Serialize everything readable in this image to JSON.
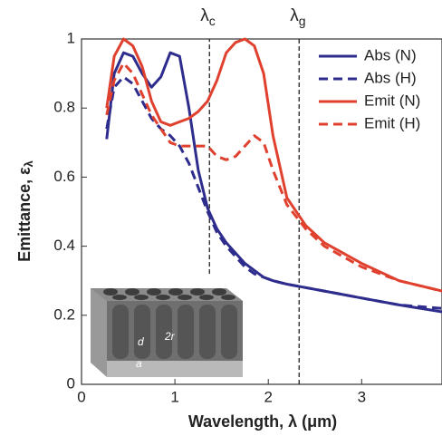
{
  "chart_data": {
    "type": "line",
    "xlabel": "Wavelength, λ (μm)",
    "ylabel": "Emittance, ε",
    "ylabel_sub": "λ",
    "x": [
      0.27,
      0.35,
      0.45,
      0.55,
      0.65,
      0.75,
      0.85,
      0.95,
      1.05,
      1.15,
      1.25,
      1.35,
      1.45,
      1.55,
      1.65,
      1.75,
      1.85,
      1.95,
      2.05,
      2.2,
      2.4,
      2.6,
      3.0,
      3.4,
      3.86
    ],
    "series": [
      {
        "name": "Abs (N)",
        "color": "#2e2c8c",
        "dashed": false,
        "values": [
          0.71,
          0.9,
          0.96,
          0.95,
          0.9,
          0.86,
          0.89,
          0.96,
          0.95,
          0.8,
          0.62,
          0.51,
          0.45,
          0.41,
          0.38,
          0.35,
          0.33,
          0.31,
          0.3,
          0.29,
          0.28,
          0.27,
          0.25,
          0.23,
          0.21
        ]
      },
      {
        "name": "Abs (H)",
        "color": "#2e2c8c",
        "dashed": true,
        "values": [
          0.74,
          0.86,
          0.89,
          0.87,
          0.82,
          0.77,
          0.74,
          0.72,
          0.69,
          0.64,
          0.57,
          0.5,
          0.44,
          0.4,
          0.37,
          0.34,
          0.32,
          0.31,
          0.3,
          0.29,
          0.28,
          0.27,
          0.25,
          0.23,
          0.22
        ]
      },
      {
        "name": "Emit (N)",
        "color": "#e0412e",
        "dashed": false,
        "values": [
          0.8,
          0.95,
          1.0,
          0.98,
          0.92,
          0.82,
          0.76,
          0.75,
          0.76,
          0.77,
          0.79,
          0.82,
          0.88,
          0.96,
          0.99,
          1.0,
          0.98,
          0.9,
          0.72,
          0.54,
          0.46,
          0.41,
          0.35,
          0.3,
          0.27
        ]
      },
      {
        "name": "Emit (H)",
        "color": "#e0412e",
        "dashed": true,
        "values": [
          0.78,
          0.88,
          0.93,
          0.9,
          0.84,
          0.78,
          0.74,
          0.7,
          0.69,
          0.69,
          0.69,
          0.69,
          0.66,
          0.65,
          0.66,
          0.69,
          0.72,
          0.7,
          0.62,
          0.52,
          0.45,
          0.4,
          0.34,
          0.3,
          0.27
        ]
      }
    ],
    "annotations": [
      {
        "text": "λ",
        "sub": "c",
        "x": 1.37,
        "y_range": [
          0.32,
          1
        ]
      },
      {
        "text": "λ",
        "sub": "g",
        "x": 2.33,
        "y_range": [
          0,
          1
        ]
      }
    ],
    "inset_labels": [
      "d",
      "2r",
      "a"
    ],
    "xlim": [
      0,
      3.86
    ],
    "ylim": [
      0,
      1
    ],
    "xticks": [
      0,
      1,
      2,
      3
    ],
    "yticks": [
      0,
      0.2,
      0.4,
      0.6,
      0.8,
      1
    ],
    "legend": "top-right",
    "grid": false
  }
}
